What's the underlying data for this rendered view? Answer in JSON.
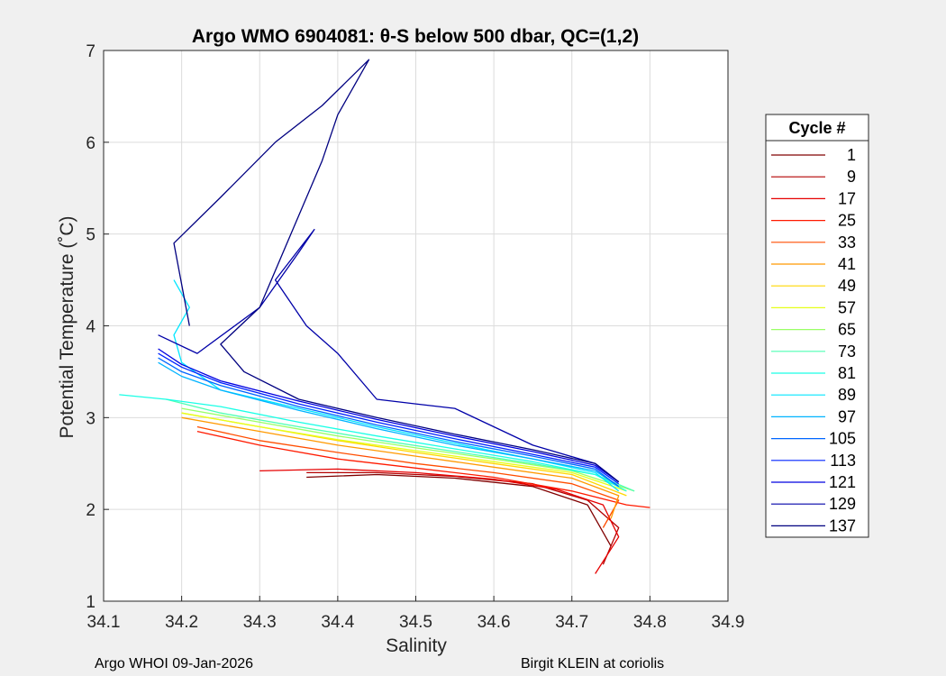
{
  "chart_data": {
    "type": "line",
    "title": "Argo WMO 6904081: θ-S below 500 dbar,  QC=(1,2)",
    "xlabel": "Salinity",
    "ylabel": "Potential Temperature (˚C)",
    "xlim": [
      34.1,
      34.9
    ],
    "ylim": [
      1,
      7
    ],
    "xticks": [
      "34.1",
      "34.2",
      "34.3",
      "34.4",
      "34.5",
      "34.6",
      "34.7",
      "34.8",
      "34.9"
    ],
    "yticks": [
      "1",
      "2",
      "3",
      "4",
      "5",
      "6",
      "7"
    ],
    "grid": true,
    "legend": {
      "title": "Cycle #",
      "placement": "right",
      "entries": [
        {
          "label": "1",
          "color": "#800000"
        },
        {
          "label": "9",
          "color": "#b30000"
        },
        {
          "label": "17",
          "color": "#e60000"
        },
        {
          "label": "25",
          "color": "#ff1a00"
        },
        {
          "label": "33",
          "color": "#ff4d00"
        },
        {
          "label": "41",
          "color": "#ff9900"
        },
        {
          "label": "49",
          "color": "#ffd700"
        },
        {
          "label": "57",
          "color": "#e6ff1a"
        },
        {
          "label": "65",
          "color": "#99ff66"
        },
        {
          "label": "73",
          "color": "#4dffb3"
        },
        {
          "label": "81",
          "color": "#1affe6"
        },
        {
          "label": "89",
          "color": "#00e6ff"
        },
        {
          "label": "97",
          "color": "#00b3ff"
        },
        {
          "label": "105",
          "color": "#0066ff"
        },
        {
          "label": "113",
          "color": "#0022ff"
        },
        {
          "label": "121",
          "color": "#0000e0"
        },
        {
          "label": "129",
          "color": "#0000a8"
        },
        {
          "label": "137",
          "color": "#000080"
        }
      ]
    },
    "series": [
      {
        "name": "1",
        "color": "#800000",
        "x": [
          34.36,
          34.45,
          34.55,
          34.65,
          34.72,
          34.75
        ],
        "y": [
          2.35,
          2.38,
          2.34,
          2.25,
          2.05,
          1.6
        ]
      },
      {
        "name": "9",
        "color": "#b30000",
        "x": [
          34.36,
          34.45,
          34.55,
          34.65,
          34.72,
          34.76,
          34.74
        ],
        "y": [
          2.4,
          2.4,
          2.36,
          2.28,
          2.1,
          1.8,
          1.4
        ]
      },
      {
        "name": "17",
        "color": "#e60000",
        "x": [
          34.3,
          34.4,
          34.5,
          34.6,
          34.68,
          34.74,
          34.76,
          34.73
        ],
        "y": [
          2.42,
          2.44,
          2.4,
          2.33,
          2.22,
          2.05,
          1.7,
          1.3
        ]
      },
      {
        "name": "25",
        "color": "#ff1a00",
        "x": [
          34.22,
          34.3,
          34.4,
          34.5,
          34.6,
          34.7,
          34.77,
          34.8
        ],
        "y": [
          2.85,
          2.7,
          2.55,
          2.45,
          2.35,
          2.2,
          2.05,
          2.02
        ]
      },
      {
        "name": "33",
        "color": "#ff4d00",
        "x": [
          34.22,
          34.3,
          34.4,
          34.5,
          34.6,
          34.7,
          34.76,
          34.74
        ],
        "y": [
          2.9,
          2.75,
          2.62,
          2.5,
          2.4,
          2.28,
          2.1,
          1.8
        ]
      },
      {
        "name": "41",
        "color": "#ff9900",
        "x": [
          34.2,
          34.3,
          34.4,
          34.5,
          34.6,
          34.7,
          34.76,
          34.75
        ],
        "y": [
          3.0,
          2.85,
          2.7,
          2.58,
          2.46,
          2.34,
          2.15,
          1.9
        ]
      },
      {
        "name": "49",
        "color": "#ffd700",
        "x": [
          34.2,
          34.3,
          34.4,
          34.5,
          34.6,
          34.7,
          34.77
        ],
        "y": [
          3.05,
          2.9,
          2.75,
          2.62,
          2.5,
          2.38,
          2.15
        ]
      },
      {
        "name": "57",
        "color": "#e6ff1a",
        "x": [
          34.2,
          34.3,
          34.4,
          34.5,
          34.6,
          34.7,
          34.77
        ],
        "y": [
          3.05,
          2.9,
          2.76,
          2.64,
          2.52,
          2.4,
          2.2
        ]
      },
      {
        "name": "65",
        "color": "#99ff66",
        "x": [
          34.2,
          34.3,
          34.4,
          34.5,
          34.6,
          34.7,
          34.78
        ],
        "y": [
          3.1,
          2.95,
          2.8,
          2.67,
          2.55,
          2.42,
          2.2
        ]
      },
      {
        "name": "73",
        "color": "#4dffb3",
        "x": [
          34.18,
          34.25,
          34.35,
          34.45,
          34.55,
          34.65,
          34.73,
          34.78
        ],
        "y": [
          3.2,
          3.05,
          2.9,
          2.76,
          2.63,
          2.5,
          2.38,
          2.2
        ]
      },
      {
        "name": "81",
        "color": "#1affe6",
        "x": [
          34.12,
          34.18,
          34.25,
          34.35,
          34.45,
          34.55,
          34.65,
          34.73,
          34.77
        ],
        "y": [
          3.25,
          3.2,
          3.12,
          2.95,
          2.8,
          2.66,
          2.52,
          2.38,
          2.2
        ]
      },
      {
        "name": "89",
        "color": "#00e6ff",
        "x": [
          34.19,
          34.21,
          34.19,
          34.2,
          34.25,
          34.35,
          34.45,
          34.55,
          34.65,
          34.73,
          34.76
        ],
        "y": [
          4.5,
          4.2,
          3.9,
          3.6,
          3.3,
          3.1,
          2.9,
          2.72,
          2.55,
          2.4,
          2.2
        ]
      },
      {
        "name": "97",
        "color": "#00b3ff",
        "x": [
          34.17,
          34.2,
          34.25,
          34.35,
          34.45,
          34.55,
          34.65,
          34.73,
          34.76
        ],
        "y": [
          3.6,
          3.45,
          3.3,
          3.08,
          2.88,
          2.7,
          2.55,
          2.42,
          2.25
        ]
      },
      {
        "name": "105",
        "color": "#0066ff",
        "x": [
          34.17,
          34.2,
          34.25,
          34.35,
          34.45,
          34.55,
          34.65,
          34.73,
          34.76
        ],
        "y": [
          3.65,
          3.5,
          3.35,
          3.12,
          2.92,
          2.74,
          2.58,
          2.44,
          2.25
        ]
      },
      {
        "name": "113",
        "color": "#0022ff",
        "x": [
          34.17,
          34.2,
          34.25,
          34.35,
          34.45,
          34.55,
          34.65,
          34.73,
          34.76
        ],
        "y": [
          3.7,
          3.55,
          3.38,
          3.15,
          2.95,
          2.77,
          2.6,
          2.46,
          2.28
        ]
      },
      {
        "name": "121",
        "color": "#0000e0",
        "x": [
          34.17,
          34.2,
          34.25,
          34.35,
          34.45,
          34.55,
          34.65,
          34.73,
          34.76
        ],
        "y": [
          3.75,
          3.58,
          3.4,
          3.18,
          2.98,
          2.8,
          2.63,
          2.48,
          2.3
        ]
      },
      {
        "name": "129",
        "color": "#0000a8",
        "x": [
          34.17,
          34.22,
          34.3,
          34.35,
          34.37,
          34.32,
          34.36,
          34.4,
          34.45,
          34.5,
          34.55,
          34.6,
          34.65,
          34.73,
          34.76
        ],
        "y": [
          3.9,
          3.7,
          4.2,
          4.8,
          5.05,
          4.5,
          4.0,
          3.7,
          3.2,
          3.15,
          3.1,
          2.9,
          2.7,
          2.5,
          2.3
        ]
      },
      {
        "name": "137",
        "color": "#000080",
        "x": [
          34.21,
          34.19,
          34.25,
          34.32,
          34.38,
          34.44,
          34.4,
          34.38,
          34.33,
          34.3,
          34.25,
          34.28,
          34.35,
          34.45,
          34.55,
          34.65,
          34.73,
          34.76
        ],
        "y": [
          4.0,
          4.9,
          5.4,
          6.0,
          6.4,
          6.9,
          6.3,
          5.8,
          4.8,
          4.2,
          3.8,
          3.5,
          3.2,
          3.0,
          2.82,
          2.65,
          2.5,
          2.3
        ]
      }
    ]
  },
  "footer": {
    "left": "Argo WHOI 09-Jan-2026",
    "right": "Birgit KLEIN at coriolis"
  }
}
